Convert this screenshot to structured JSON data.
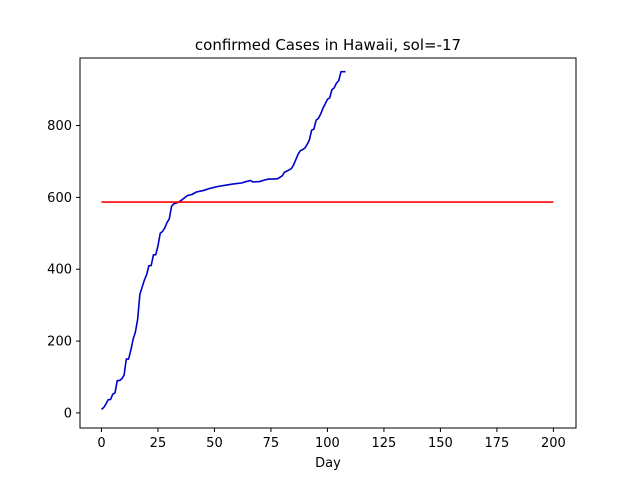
{
  "chart_data": {
    "type": "line",
    "title": "confirmed Cases in Hawaii, sol=-17",
    "xlabel": "Day",
    "ylabel": "",
    "xlim": [
      -9.5,
      210
    ],
    "ylim": [
      -42,
      988
    ],
    "xticks": [
      0,
      25,
      50,
      75,
      100,
      125,
      150,
      175,
      200
    ],
    "yticks": [
      0,
      200,
      400,
      600,
      800
    ],
    "grid": false,
    "series": [
      {
        "color": "#0000cc",
        "x": [
          0,
          1,
          2,
          3,
          4,
          5,
          6,
          7,
          8,
          9,
          10,
          11,
          12,
          13,
          14,
          15,
          16,
          17,
          18,
          19,
          20,
          21,
          22,
          23,
          24,
          25,
          26,
          27,
          28,
          29,
          30,
          31,
          32,
          33,
          34,
          36,
          38,
          40,
          42,
          45,
          48,
          50,
          52,
          55,
          58,
          62,
          64,
          66,
          67,
          70,
          72,
          74,
          76,
          78,
          80,
          81,
          82,
          84,
          85,
          86,
          87,
          88,
          89,
          90,
          91,
          92,
          93,
          94,
          95,
          96,
          97,
          98,
          99,
          100,
          101,
          102,
          103,
          104,
          105,
          106,
          107,
          108
        ],
        "y": [
          10,
          15,
          25,
          37,
          37,
          52,
          56,
          90,
          90,
          95,
          105,
          150,
          150,
          175,
          205,
          225,
          260,
          330,
          350,
          370,
          385,
          410,
          410,
          440,
          440,
          465,
          500,
          505,
          515,
          530,
          540,
          575,
          582,
          584,
          586,
          595,
          605,
          608,
          615,
          619,
          625,
          628,
          631,
          634,
          637,
          640,
          644,
          647,
          643,
          644,
          648,
          651,
          651,
          652,
          660,
          670,
          673,
          680,
          690,
          705,
          720,
          730,
          733,
          737,
          747,
          760,
          787,
          790,
          815,
          820,
          832,
          848,
          860,
          873,
          877,
          900,
          905,
          918,
          925,
          950,
          950,
          950
        ]
      },
      {
        "color": "#ff0000",
        "x": [
          0,
          200
        ],
        "y": [
          587,
          587
        ]
      }
    ]
  }
}
